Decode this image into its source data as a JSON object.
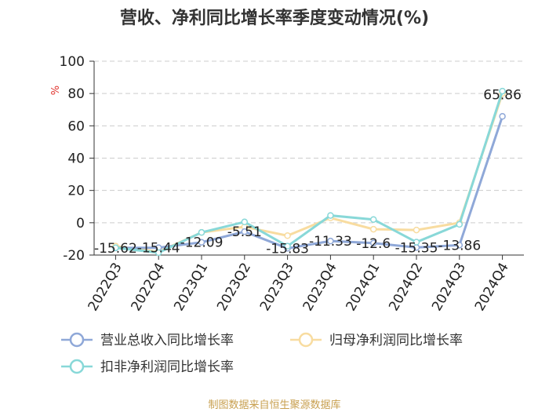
{
  "chart_data": {
    "type": "line",
    "title": "营收、净利同比增长率季度变动情况(%)",
    "ylabel": "%",
    "ylim": [
      -20,
      100
    ],
    "yticks": [
      -20,
      0,
      20,
      40,
      60,
      80,
      100
    ],
    "grid": true,
    "categories": [
      "2022Q3",
      "2022Q4",
      "2023Q1",
      "2023Q2",
      "2023Q3",
      "2023Q4",
      "2024Q1",
      "2024Q2",
      "2024Q3",
      "2024Q4"
    ],
    "series": [
      {
        "name": "营业总收入同比增长率",
        "color": "#8fa8d8",
        "values": [
          -15.62,
          -15.44,
          -12.09,
          -5.51,
          -15.83,
          -11.33,
          -12.6,
          -15.35,
          -13.86,
          65.86
        ],
        "labels": [
          "-15.62",
          "-15.44",
          "-12.09",
          "-5.51",
          "-15.83",
          "-11.33",
          "-12.6",
          "-15.35",
          "-13.86",
          "65.86"
        ]
      },
      {
        "name": "归母净利润同比增长率",
        "color": "#f8dca0",
        "values": [
          -14.5,
          -18.0,
          -6.0,
          -2.5,
          -8.0,
          3.0,
          -4.0,
          -4.5,
          0.0,
          80.0
        ]
      },
      {
        "name": "扣非净利润同比增长率",
        "color": "#88d8d8",
        "values": [
          -15.5,
          -18.5,
          -6.0,
          0.5,
          -14.5,
          4.5,
          2.0,
          -12.0,
          -1.0,
          81.5
        ]
      }
    ],
    "legend": "bottom"
  },
  "source": "制图数据来自恒生聚源数据库"
}
